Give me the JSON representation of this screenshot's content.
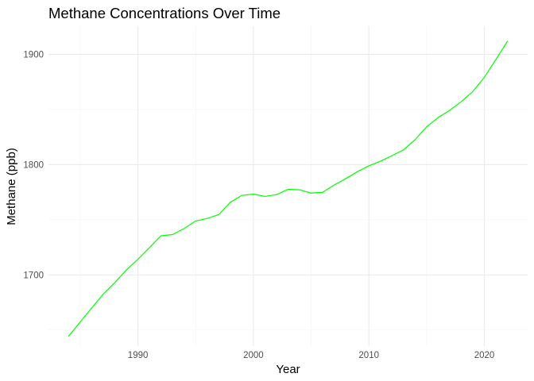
{
  "chart_data": {
    "type": "line",
    "title": "Methane Concentrations Over Time",
    "xlabel": "Year",
    "ylabel": "Methane (ppb)",
    "xlim": [
      1982.25,
      2023.75
    ],
    "ylim": [
      1635.5,
      1925.5
    ],
    "x_ticks": [
      1990,
      2000,
      2010,
      2020
    ],
    "x_minor_ticks": [
      1985,
      1995,
      2005,
      2015
    ],
    "y_ticks": [
      1700,
      1800,
      1900
    ],
    "y_minor_ticks": [
      1650,
      1750,
      1850
    ],
    "grid": true,
    "legend": "none",
    "series": [
      {
        "color": "#00ff00",
        "x": [
          1984,
          1985,
          1986,
          1987,
          1988,
          1989,
          1990,
          1991,
          1992,
          1993,
          1994,
          1995,
          1996,
          1997,
          1998,
          1999,
          2000,
          2001,
          2002,
          2003,
          2004,
          2005,
          2006,
          2007,
          2008,
          2009,
          2010,
          2011,
          2012,
          2013,
          2014,
          2015,
          2016,
          2017,
          2018,
          2019,
          2020,
          2021,
          2022
        ],
        "y": [
          1644.5,
          1657.4,
          1670.1,
          1682.7,
          1693.1,
          1704.5,
          1714.2,
          1724.8,
          1735.5,
          1736.6,
          1742.1,
          1748.9,
          1751.2,
          1754.7,
          1765.9,
          1772.1,
          1773.3,
          1771.2,
          1772.8,
          1777.6,
          1777.2,
          1774.2,
          1774.9,
          1781.6,
          1787.3,
          1793.6,
          1798.9,
          1803.1,
          1808.1,
          1813.4,
          1822.6,
          1834.3,
          1842.7,
          1849.2,
          1857.1,
          1866.3,
          1879.1,
          1895.3,
          1911.8
        ]
      }
    ]
  }
}
